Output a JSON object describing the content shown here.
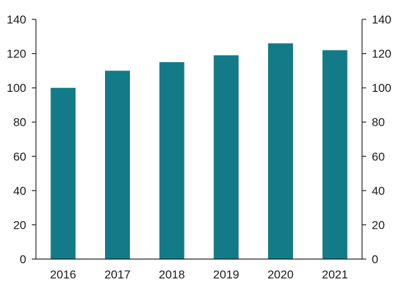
{
  "colors": {
    "bar": "#137a87",
    "axis": "#1a1a1a"
  },
  "chart_data": {
    "type": "bar",
    "title": "",
    "xlabel": "",
    "ylabel": "",
    "categories": [
      "2016",
      "2017",
      "2018",
      "2019",
      "2020",
      "2021"
    ],
    "values": [
      100,
      110,
      115,
      119,
      126,
      122
    ],
    "ylim": [
      0,
      140
    ],
    "yticks": [
      0,
      20,
      40,
      60,
      80,
      100,
      120,
      140
    ],
    "ytick_labels": [
      "0",
      "20",
      "40",
      "60",
      "80",
      "100",
      "120",
      "140"
    ],
    "secondary_yticks": [
      0,
      20,
      40,
      60,
      80,
      100,
      120,
      140
    ],
    "secondary_ytick_labels": [
      "0",
      "20",
      "40",
      "60",
      "80",
      "100",
      "120",
      "140"
    ],
    "grid": false,
    "legend": "none"
  }
}
